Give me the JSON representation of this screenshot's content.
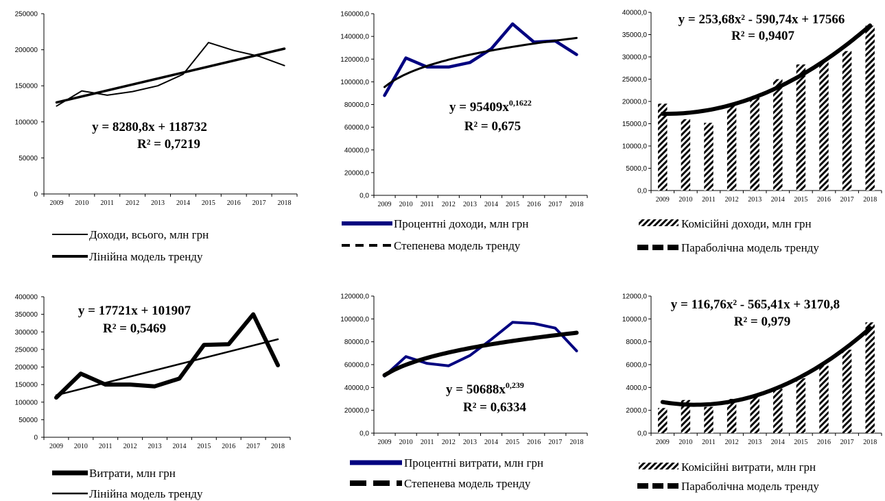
{
  "chart_data": [
    {
      "type": "line",
      "categories": [
        "2009",
        "2010",
        "2011",
        "2012",
        "2013",
        "2014",
        "2015",
        "2016",
        "2017",
        "2018"
      ],
      "ylim": [
        0,
        250000
      ],
      "yticks": [
        "0",
        "50000",
        "100000",
        "150000",
        "200000",
        "250000"
      ],
      "grid": false,
      "series": [
        {
          "name": "Доходи, всього, млн грн",
          "color": "#000000",
          "values": [
            122000,
            143000,
            137000,
            142000,
            150000,
            166000,
            210000,
            199000,
            191000,
            178000
          ]
        },
        {
          "name": "Лінійна модель тренду",
          "color": "#000000",
          "trend": "linear",
          "coef": [
            8280.8,
            118732
          ]
        }
      ],
      "equation": "y = 8280,8x + 118732",
      "r2": "R² = 0,7219",
      "legend_position": "bottom"
    },
    {
      "type": "line",
      "categories": [
        "2009",
        "2010",
        "2011",
        "2012",
        "2013",
        "2014",
        "2015",
        "2016",
        "2017",
        "2018"
      ],
      "ylim": [
        0,
        160000
      ],
      "yticks": [
        "0,0",
        "20000,0",
        "40000,0",
        "60000,0",
        "80000,0",
        "100000,0",
        "120000,0",
        "140000,0",
        "160000,0"
      ],
      "grid": false,
      "series": [
        {
          "name": "Процентні доходи, млн грн",
          "color": "#000080",
          "values": [
            88000,
            121000,
            113000,
            113000,
            117000,
            129000,
            151000,
            135000,
            136000,
            124000
          ]
        },
        {
          "name": "Степенева модель тренду",
          "color": "#000000",
          "trend": "power",
          "coef": [
            95409,
            0.1622
          ]
        }
      ],
      "equation_main": "y = 95409x",
      "equation_exp": "0,1622",
      "r2": "R² = 0,675",
      "legend_position": "bottom"
    },
    {
      "type": "bar",
      "categories": [
        "2009",
        "2010",
        "2011",
        "2012",
        "2013",
        "2014",
        "2015",
        "2016",
        "2017",
        "2018"
      ],
      "ylim": [
        0,
        40000
      ],
      "yticks": [
        "0,0",
        "5000,0",
        "10000,0",
        "15000,0",
        "20000,0",
        "25000,0",
        "30000,0",
        "35000,0",
        "40000,0"
      ],
      "grid": false,
      "series": [
        {
          "name": "Комісійні доходи, млн грн",
          "pattern": "hatch",
          "values": [
            19500,
            16000,
            15200,
            19200,
            21000,
            25000,
            28300,
            28800,
            31300,
            37000
          ]
        },
        {
          "name": "Параболічна модель тренду",
          "color": "#000000",
          "trend": "poly2",
          "coef": [
            253.68,
            -590.74,
            17566
          ]
        }
      ],
      "equation": "y = 253,68x² - 590,74x + 17566",
      "r2": "R² = 0,9407",
      "legend_position": "bottom"
    },
    {
      "type": "line",
      "categories": [
        "2009",
        "2010",
        "2011",
        "2012",
        "2013",
        "2014",
        "2015",
        "2016",
        "2017",
        "2018"
      ],
      "ylim": [
        0,
        400000
      ],
      "yticks": [
        "0",
        "50000",
        "100000",
        "150000",
        "200000",
        "250000",
        "300000",
        "350000",
        "400000"
      ],
      "grid": false,
      "series": [
        {
          "name": "Витрати, млн грн",
          "color": "#000000",
          "values": [
            113000,
            181000,
            150000,
            150000,
            145000,
            167000,
            263000,
            265000,
            350000,
            205000
          ]
        },
        {
          "name": "Лінійна модель тренду",
          "color": "#000000",
          "trend": "linear",
          "coef": [
            17721,
            101907
          ]
        }
      ],
      "equation": "y = 17721x + 101907",
      "r2": "R² = 0,5469",
      "legend_position": "bottom"
    },
    {
      "type": "line",
      "categories": [
        "2009",
        "2010",
        "2011",
        "2012",
        "2013",
        "2014",
        "2015",
        "2016",
        "2017",
        "2018"
      ],
      "ylim": [
        0,
        120000
      ],
      "yticks": [
        "0,0",
        "20000,0",
        "40000,0",
        "60000,0",
        "80000,0",
        "100000,0",
        "120000,0"
      ],
      "grid": false,
      "series": [
        {
          "name": "Процентні витрати, млн грн",
          "color": "#000080",
          "values": [
            50000,
            67000,
            61000,
            59000,
            68000,
            82000,
            97000,
            96000,
            92000,
            72000
          ]
        },
        {
          "name": "Степенева модель тренду",
          "color": "#000000",
          "trend": "power",
          "coef": [
            50688,
            0.239
          ]
        }
      ],
      "equation_main": "y = 50688x",
      "equation_exp": "0,239",
      "r2": "R² = 0,6334",
      "legend_position": "bottom"
    },
    {
      "type": "bar",
      "categories": [
        "2009",
        "2010",
        "2011",
        "2012",
        "2013",
        "2014",
        "2015",
        "2016",
        "2017",
        "2018"
      ],
      "ylim": [
        0,
        12000
      ],
      "yticks": [
        "0,0",
        "2000,0",
        "4000,0",
        "6000,0",
        "8000,0",
        "10000,0",
        "12000,0"
      ],
      "grid": false,
      "series": [
        {
          "name": "Комісійні витрати, млн грн",
          "pattern": "hatch",
          "values": [
            2200,
            2900,
            2300,
            3000,
            3200,
            3900,
            4800,
            5900,
            7300,
            9700
          ]
        },
        {
          "name": "Параболічна модель тренду",
          "color": "#000000",
          "trend": "poly2",
          "coef": [
            116.76,
            -565.41,
            3170.8
          ]
        }
      ],
      "equation": "y = 116,76x² - 565,41x + 3170,8",
      "r2": "R² = 0,979",
      "legend_position": "bottom"
    }
  ]
}
